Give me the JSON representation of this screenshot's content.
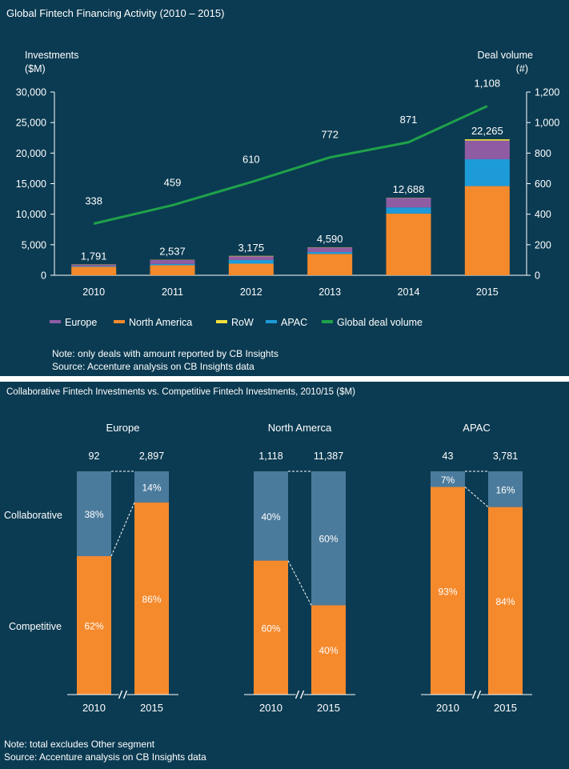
{
  "chart_data": [
    {
      "type": "bar",
      "title": "Global Fintech Financing Activity (2010 – 2015)",
      "ylabel": "Investments ($M)",
      "ylabel_lines": [
        "Investments",
        "($M)"
      ],
      "y2label": "Deal volume (#)",
      "y2label_lines": [
        "Deal volume",
        "(#)"
      ],
      "ylim": [
        0,
        30000
      ],
      "y2lim": [
        0,
        1200
      ],
      "yticks": [
        "0",
        "5,000",
        "10,000",
        "15,000",
        "20,000",
        "25,000",
        "30,000"
      ],
      "y2ticks": [
        "0",
        "200",
        "400",
        "600",
        "800",
        "1,000",
        "1,200"
      ],
      "categories": [
        "2010",
        "2011",
        "2012",
        "2013",
        "2014",
        "2015"
      ],
      "totals": [
        "1,791",
        "2,537",
        "3,175",
        "4,590",
        "12,688",
        "22,265"
      ],
      "series": [
        {
          "name": "North America",
          "color": "#f58a2d",
          "values": [
            1400,
            1650,
            1900,
            3500,
            10100,
            14600
          ]
        },
        {
          "name": "APAC",
          "color": "#1d9bd8",
          "values": [
            100,
            200,
            600,
            300,
            1000,
            4400
          ]
        },
        {
          "name": "Europe",
          "color": "#8f5ca4",
          "values": [
            250,
            650,
            600,
            750,
            1550,
            3050
          ]
        },
        {
          "name": "RoW",
          "color": "#f2e03c",
          "values": [
            41,
            37,
            75,
            40,
            38,
            215
          ]
        }
      ],
      "legend_order": [
        "Europe",
        "North America",
        "RoW",
        "APAC",
        "Global deal volume"
      ],
      "line": {
        "name": "Global deal volume",
        "color": "#1fa24a",
        "values": [
          338,
          459,
          610,
          772,
          871,
          1108
        ],
        "labels": [
          "338",
          "459",
          "610",
          "772",
          "871",
          "1,108"
        ]
      },
      "notes": [
        "Note: only deals with amount reported by CB Insights",
        "Source: Accenture analysis on CB Insights data"
      ]
    },
    {
      "type": "bar",
      "stacked": "percent",
      "title": "Collaborative Fintech Investments vs. Competitive Fintech Investments, 2010/15 ($M)",
      "row_labels": [
        "Collaborative",
        "Competitive"
      ],
      "colors": {
        "Collaborative": "#4b7b9c",
        "Competitive": "#f58a2d"
      },
      "groups": [
        {
          "name": "Europe",
          "categories": [
            "2010",
            "2015"
          ],
          "totals": [
            "92",
            "2,897"
          ],
          "collaborative": [
            38,
            14
          ],
          "competitive": [
            62,
            86
          ],
          "collaborative_labels": [
            "38%",
            "14%"
          ],
          "competitive_labels": [
            "62%",
            "86%"
          ]
        },
        {
          "name": "North Amerca",
          "categories": [
            "2010",
            "2015"
          ],
          "totals": [
            "1,118",
            "11,387"
          ],
          "collaborative": [
            40,
            60
          ],
          "competitive": [
            60,
            40
          ],
          "collaborative_labels": [
            "40%",
            "60%"
          ],
          "competitive_labels": [
            "60%",
            "40%"
          ]
        },
        {
          "name": "APAC",
          "categories": [
            "2010",
            "2015"
          ],
          "totals": [
            "43",
            "3,781"
          ],
          "collaborative": [
            7,
            16
          ],
          "competitive": [
            93,
            84
          ],
          "collaborative_labels": [
            "7%",
            "16%"
          ],
          "competitive_labels": [
            "93%",
            "84%"
          ]
        }
      ],
      "notes": [
        "Note: total excludes Other segment",
        "Source: Accenture analysis on CB Insights data"
      ]
    }
  ]
}
